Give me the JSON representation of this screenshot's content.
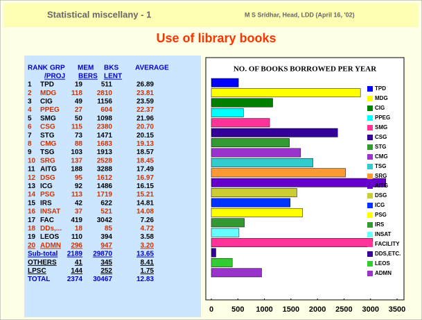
{
  "header": {
    "series_title": "Statistical miscellany - 1",
    "author": "M S Sridhar, Head, LDD (April 16, '02)",
    "title": "Use of library books"
  },
  "table": {
    "header_line1": [
      "RANK",
      "GRP",
      "MEM",
      "BKS",
      "AVERAGE"
    ],
    "header_line2": [
      "/PROJ",
      "BERS",
      "LENT"
    ],
    "rows": [
      [
        "1",
        "TPD",
        "19",
        "511",
        "26.89"
      ],
      [
        "2",
        "MDG",
        "118",
        "2810",
        "23.81"
      ],
      [
        "3",
        "CIG",
        "49",
        "1156",
        "23.59"
      ],
      [
        "4",
        "PPEG",
        "27",
        "604",
        "22.37"
      ],
      [
        "5",
        "SMG",
        "50",
        "1098",
        "21.96"
      ],
      [
        "6",
        "CSG",
        "115",
        "2380",
        "20.70"
      ],
      [
        "7",
        "STG",
        "73",
        "1471",
        "20.15"
      ],
      [
        "8",
        "CMG",
        "88",
        "1683",
        "19.13"
      ],
      [
        "9",
        "TSG",
        "103",
        "1913",
        "18.57"
      ],
      [
        "10",
        "SRG",
        "137",
        "2528",
        "18.45"
      ],
      [
        "11",
        "AITG",
        "188",
        "3288",
        "17.49"
      ],
      [
        "12",
        "DSG",
        "95",
        "1612",
        "16.97"
      ],
      [
        "13",
        "ICG",
        "92",
        "1486",
        "16.15"
      ],
      [
        "14",
        "PSG",
        "113",
        "1719",
        "15.21"
      ],
      [
        "15",
        "IRS",
        "42",
        "622",
        "14.81"
      ],
      [
        "16",
        "INSAT",
        "37",
        "521",
        "14.08"
      ],
      [
        "17",
        "FAC",
        "419",
        "3042",
        "7.26"
      ],
      [
        "18",
        "DDs,...",
        "18",
        "85",
        "4.72"
      ],
      [
        "19",
        "LEOS",
        "110",
        "394",
        "3.58"
      ],
      [
        "20",
        "ADMN",
        "296",
        "947",
        "3.20"
      ]
    ],
    "totals": [
      [
        "Sub-total",
        "2189",
        "29870",
        "13.65"
      ],
      [
        "OTHERS",
        "41",
        "345",
        "8.41"
      ],
      [
        "LPSC",
        "144",
        "252",
        "1.75"
      ],
      [
        "TOTAL",
        "2374",
        "30467",
        "12.83"
      ]
    ]
  },
  "chart_data": {
    "type": "barh",
    "title": "NO. OF BOOKS BORROWED PER YEAR",
    "categories": [
      "TPD",
      "MDG",
      "CIG",
      "PPEG",
      "SMG",
      "CSG",
      "STG",
      "CMG",
      "TSG",
      "SRG",
      "AITG",
      "DSG",
      "ICG",
      "PSG",
      "IRS",
      "INSAT",
      "FACILITY",
      "DDS,ETC.",
      "LEOS",
      "ADMN"
    ],
    "values": [
      511,
      2810,
      1156,
      604,
      1098,
      2380,
      1471,
      1683,
      1913,
      2528,
      3288,
      1612,
      1486,
      1719,
      622,
      521,
      3042,
      85,
      394,
      947
    ],
    "colors": [
      "#0000ff",
      "#ffff00",
      "#008000",
      "#00ffff",
      "#ff3399",
      "#330099",
      "#339933",
      "#9933cc",
      "#33cccc",
      "#ff9933",
      "#6600cc",
      "#cccc33",
      "#0033ff",
      "#ffff00",
      "#339933",
      "#66ffff",
      "#ff3399",
      "#330099",
      "#33cc33",
      "#9933cc"
    ],
    "xlim": [
      0,
      3500
    ],
    "xticks": [
      0,
      500,
      1000,
      1500,
      2000,
      2500,
      3000,
      3500
    ],
    "legend": "right"
  }
}
